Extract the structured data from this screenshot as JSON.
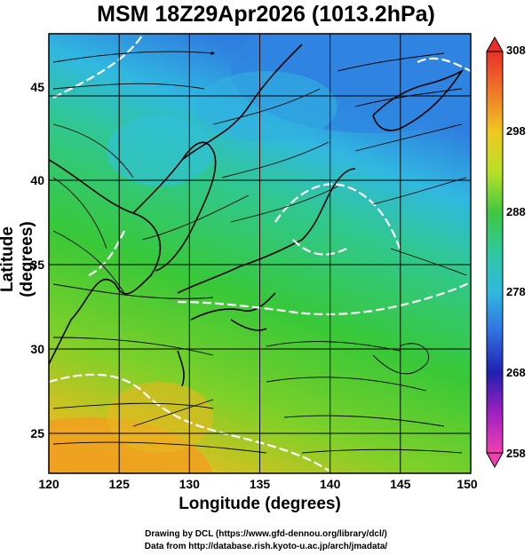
{
  "title": "MSM 18Z29Apr2026 (1013.2hPa)",
  "axes": {
    "xlabel": "Longitude (degrees)",
    "ylabel": "Latitude  (degrees)",
    "x_ticks": [
      "120",
      "125",
      "130",
      "135",
      "140",
      "145",
      "150"
    ],
    "y_ticks": [
      "25",
      "30",
      "35",
      "40",
      "45"
    ]
  },
  "colorbar": {
    "ticks": [
      "308",
      "298",
      "288",
      "278",
      "268",
      "258"
    ],
    "min": 258,
    "max": 308,
    "unit": ""
  },
  "credits": {
    "line1": "Drawing by DCL (https://www.gfd-dennou.org/library/dcl/)",
    "line2": "Data from http://database.rish.kyoto-u.ac.jp/arch/jmadata/"
  },
  "colors": {
    "warm": "#f5a020",
    "mid": "#40c840",
    "cool": "#30c0e0",
    "cold": "#3080e0",
    "contour": "#ffffff",
    "land": "#000000"
  },
  "chart_data": {
    "type": "heatmap",
    "field": "temperature with wind streamlines",
    "xlim": [
      120,
      150
    ],
    "ylim": [
      22.5,
      47.5
    ],
    "colorbar_range": [
      258,
      308
    ],
    "grid": true
  }
}
